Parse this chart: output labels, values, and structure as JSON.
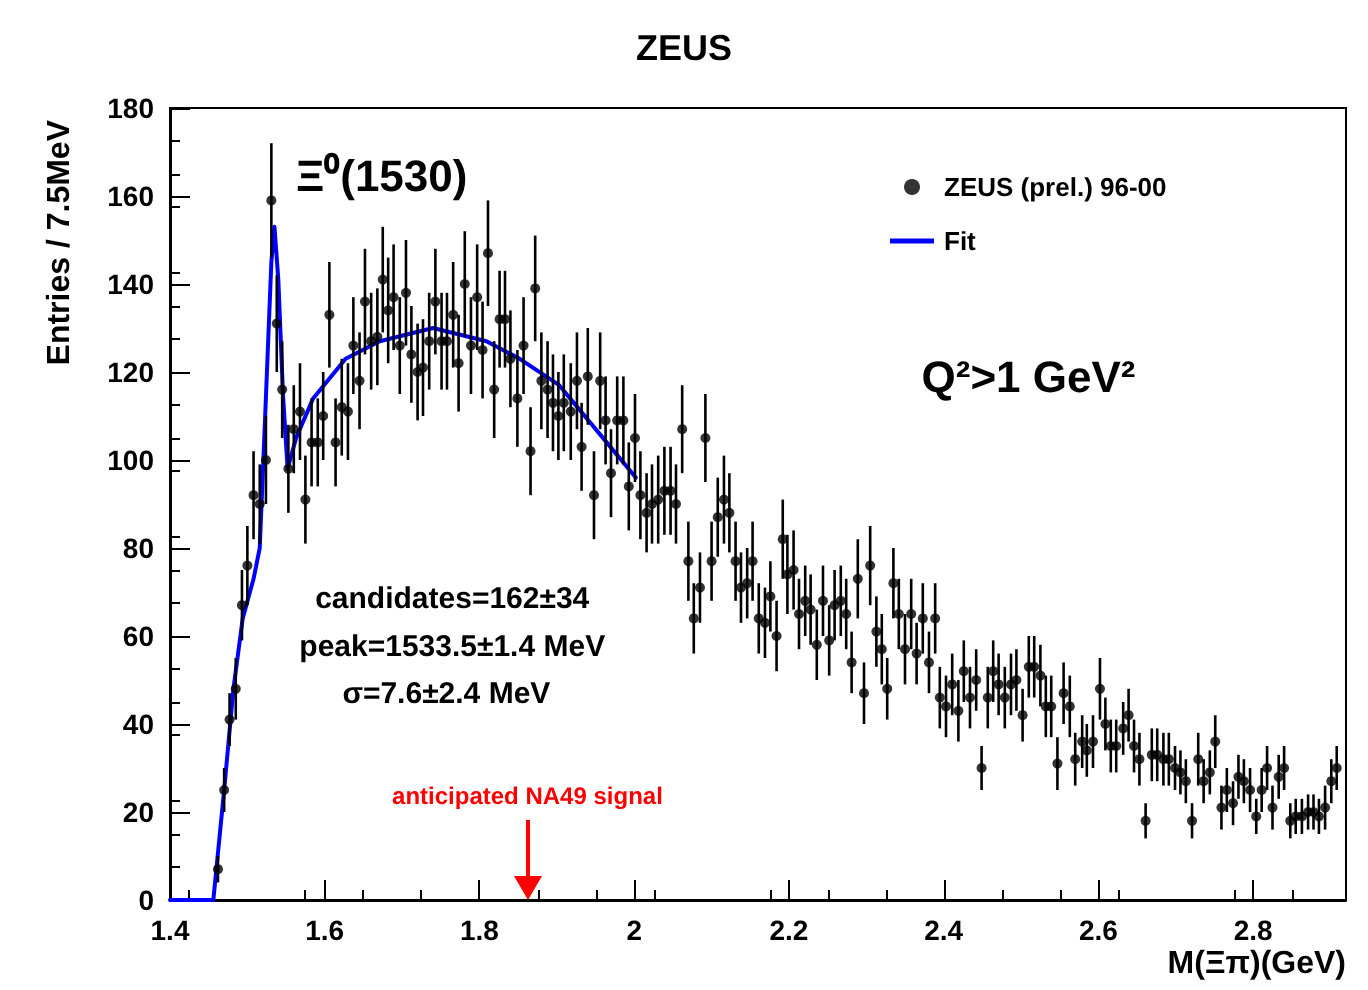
{
  "chart_data": {
    "type": "scatter",
    "title": "ZEUS",
    "xlabel": "M(Ξπ)(GeV)",
    "ylabel": "Entries / 7.5MeV",
    "xlim": [
      1.4,
      2.92
    ],
    "xticks": [
      1.4,
      1.6,
      1.8,
      2,
      2.2,
      2.4,
      2.6,
      2.8
    ],
    "ylim": [
      0,
      180
    ],
    "yticks": [
      0,
      20,
      40,
      60,
      80,
      100,
      120,
      140,
      160,
      180
    ],
    "legend": "top right",
    "series": [
      {
        "name": "ZEUS (prel.) 96-00",
        "color": "#000000",
        "marker": "circle",
        "x": [
          1.462,
          1.47,
          1.477,
          1.485,
          1.493,
          1.5,
          1.508,
          1.516,
          1.524,
          1.531,
          1.538,
          1.545,
          1.553,
          1.56,
          1.568,
          1.575,
          1.583,
          1.591,
          1.598,
          1.606,
          1.614,
          1.622,
          1.63,
          1.637,
          1.645,
          1.652,
          1.66,
          1.668,
          1.675,
          1.682,
          1.689,
          1.697,
          1.705,
          1.712,
          1.72,
          1.727,
          1.735,
          1.743,
          1.751,
          1.758,
          1.766,
          1.773,
          1.781,
          1.789,
          1.797,
          1.804,
          1.811,
          1.819,
          1.826,
          1.833,
          1.84,
          1.849,
          1.857,
          1.866,
          1.872,
          1.88,
          1.888,
          1.895,
          1.902,
          1.909,
          1.918,
          1.926,
          1.932,
          1.94,
          1.948,
          1.956,
          1.963,
          1.97,
          1.978,
          1.986,
          1.993,
          2.001,
          2.008,
          2.016,
          2.023,
          2.031,
          2.039,
          2.047,
          2.054,
          2.062,
          2.07,
          2.077,
          2.085,
          2.092,
          2.1,
          2.108,
          2.116,
          2.123,
          2.131,
          2.138,
          2.146,
          2.153,
          2.161,
          2.169,
          2.176,
          2.184,
          2.192,
          2.198,
          2.206,
          2.213,
          2.221,
          2.228,
          2.236,
          2.244,
          2.252,
          2.259,
          2.267,
          2.274,
          2.281,
          2.289,
          2.297,
          2.305,
          2.313,
          2.32,
          2.327,
          2.335,
          2.342,
          2.35,
          2.358,
          2.365,
          2.373,
          2.381,
          2.389,
          2.395,
          2.403,
          2.411,
          2.419,
          2.426,
          2.434,
          2.442,
          2.449,
          2.457,
          2.464,
          2.471,
          2.479,
          2.487,
          2.494,
          2.502,
          2.51,
          2.517,
          2.525,
          2.532,
          2.539,
          2.547,
          2.555,
          2.563,
          2.57,
          2.579,
          2.585,
          2.593,
          2.602,
          2.609,
          2.616,
          2.623,
          2.632,
          2.639,
          2.646,
          2.653,
          2.661,
          2.669,
          2.676,
          2.684,
          2.691,
          2.699,
          2.706,
          2.713,
          2.721,
          2.729,
          2.736,
          2.744,
          2.751,
          2.759,
          2.766,
          2.774,
          2.781,
          2.788,
          2.796,
          2.804,
          2.811,
          2.818,
          2.825,
          2.833,
          2.84,
          2.848,
          2.855,
          2.863,
          2.871,
          2.878,
          2.885,
          2.893,
          2.901,
          2.908
        ],
        "values": [
          7,
          25,
          41,
          48,
          67,
          76,
          92,
          90,
          100,
          159,
          131,
          116,
          98,
          107,
          111,
          91,
          104,
          104,
          110,
          133,
          104,
          112,
          111,
          126,
          118,
          136,
          127,
          128,
          141,
          134,
          137,
          126,
          138,
          124,
          120,
          121,
          127,
          136,
          127,
          127,
          133,
          122,
          140,
          126,
          137,
          125,
          147,
          116,
          132,
          132,
          123,
          114,
          126,
          102,
          139,
          118,
          116,
          113,
          110,
          113,
          111,
          118,
          103,
          119,
          92,
          118,
          109,
          97,
          109,
          109,
          94,
          105,
          92,
          88,
          90,
          91,
          93,
          93,
          90,
          107,
          77,
          64,
          71,
          105,
          77,
          87,
          91,
          88,
          77,
          71,
          72,
          77,
          64,
          63,
          69,
          60,
          82,
          74,
          75,
          65,
          68,
          66,
          58,
          68,
          59,
          67,
          68,
          65,
          54,
          73,
          47,
          76,
          61,
          57,
          48,
          72,
          65,
          57,
          65,
          56,
          64,
          54,
          64,
          46,
          44,
          49,
          43,
          52,
          46,
          50,
          30,
          46,
          52,
          49,
          46,
          49,
          50,
          42,
          53,
          53,
          51,
          44,
          44,
          31,
          47,
          44,
          32,
          36,
          34,
          36,
          48,
          40,
          35,
          35,
          39,
          42,
          35,
          32,
          18,
          33,
          33,
          32,
          32,
          30,
          29,
          27,
          18,
          32,
          27,
          29,
          36,
          21,
          25,
          22,
          28,
          27,
          25,
          19,
          25,
          30,
          21,
          28,
          30,
          18,
          19,
          19,
          20,
          20,
          19,
          21,
          27,
          30
        ],
        "errors": [
          3,
          5,
          6,
          7,
          8,
          9,
          10,
          9,
          10,
          13,
          11,
          11,
          10,
          10,
          11,
          10,
          10,
          10,
          10,
          12,
          10,
          11,
          11,
          11,
          11,
          12,
          11,
          11,
          12,
          12,
          12,
          11,
          12,
          11,
          11,
          11,
          11,
          12,
          11,
          11,
          12,
          11,
          12,
          11,
          12,
          11,
          12,
          11,
          11,
          11,
          11,
          11,
          11,
          10,
          12,
          11,
          11,
          11,
          10,
          11,
          11,
          11,
          10,
          11,
          10,
          11,
          10,
          10,
          10,
          10,
          10,
          10,
          10,
          9,
          9,
          10,
          10,
          10,
          9,
          10,
          9,
          8,
          8,
          10,
          9,
          9,
          10,
          9,
          9,
          8,
          8,
          9,
          8,
          8,
          8,
          8,
          9,
          9,
          9,
          8,
          8,
          8,
          8,
          8,
          8,
          8,
          8,
          8,
          7,
          9,
          7,
          9,
          8,
          8,
          7,
          8,
          8,
          8,
          8,
          7,
          8,
          7,
          8,
          7,
          7,
          7,
          7,
          7,
          7,
          7,
          5,
          7,
          7,
          7,
          7,
          7,
          7,
          6,
          7,
          7,
          7,
          7,
          7,
          6,
          7,
          7,
          6,
          6,
          6,
          6,
          7,
          6,
          6,
          6,
          6,
          6,
          6,
          6,
          4,
          6,
          6,
          6,
          6,
          5,
          5,
          5,
          4,
          6,
          5,
          5,
          6,
          5,
          5,
          5,
          5,
          5,
          5,
          4,
          5,
          5,
          5,
          5,
          5,
          4,
          4,
          4,
          4,
          4,
          4,
          5,
          5,
          5
        ]
      },
      {
        "name": "Fit",
        "type": "line",
        "color": "#0000ff",
        "line_style": "solid",
        "marker": "none",
        "x": [
          1.4,
          1.456,
          1.47,
          1.482,
          1.494,
          1.508,
          1.516,
          1.523,
          1.531,
          1.535,
          1.54,
          1.546,
          1.552,
          1.563,
          1.585,
          1.627,
          1.671,
          1.74,
          1.809,
          1.852,
          1.903,
          1.955,
          2.002
        ],
        "values": [
          0,
          0,
          25,
          48,
          64,
          73,
          80,
          110,
          145,
          153,
          141,
          115,
          98,
          105,
          114,
          123,
          127,
          130,
          127,
          123,
          117,
          106,
          96
        ]
      }
    ],
    "annotations": [
      "Ξ⁰(1530)",
      "Q²>1 GeV²",
      "candidates=162±34",
      "peak=1533.5±1.4 MeV",
      "σ=7.6±2.4 MeV"
    ],
    "ref_lines": [
      {
        "axis": "x",
        "value": 1.862,
        "label": "anticipated NA49 signal",
        "color": "#ff0000"
      }
    ]
  }
}
